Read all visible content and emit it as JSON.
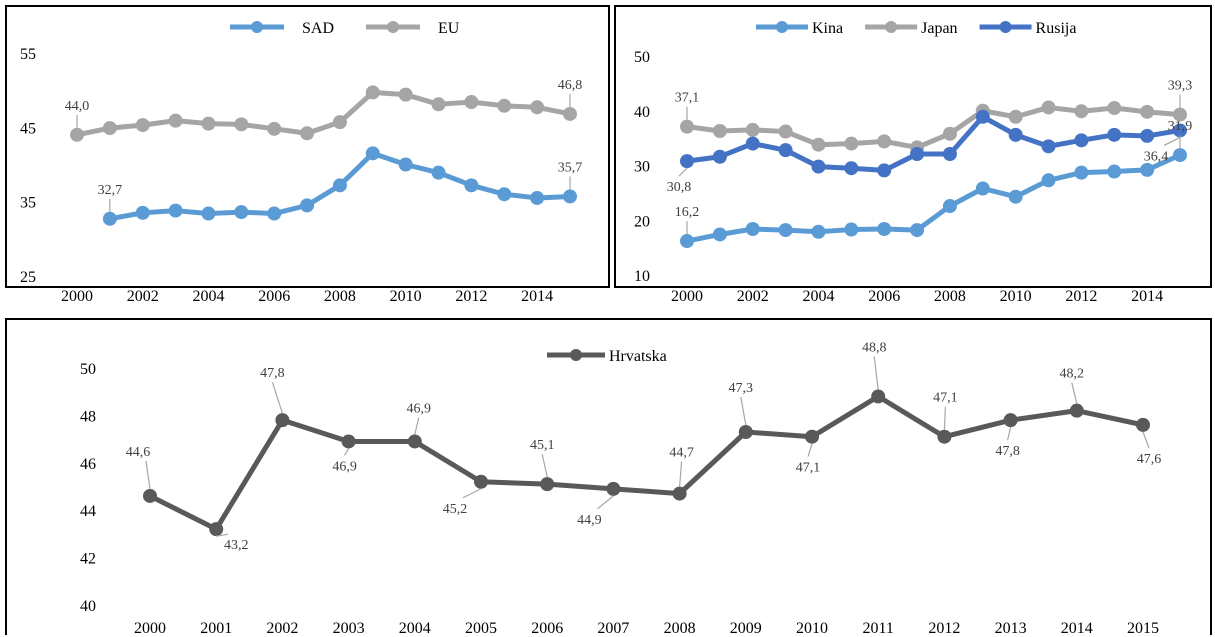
{
  "chart_data": [
    {
      "id": "a",
      "type": "line",
      "title": "",
      "x": [
        2000,
        2001,
        2002,
        2003,
        2004,
        2005,
        2006,
        2007,
        2008,
        2009,
        2010,
        2011,
        2012,
        2013,
        2014,
        2015
      ],
      "xticks": [
        2000,
        2002,
        2004,
        2006,
        2008,
        2010,
        2012,
        2014
      ],
      "ylim": [
        25,
        55
      ],
      "yticks": [
        25,
        35,
        45,
        55
      ],
      "legend": "top-center",
      "series": [
        {
          "name": "SAD",
          "color": "#5B9BD5",
          "values": [
            null,
            32.7,
            33.5,
            33.8,
            33.4,
            33.6,
            33.4,
            34.5,
            37.2,
            41.5,
            40.0,
            38.9,
            37.2,
            36.0,
            35.5,
            35.7
          ]
        },
        {
          "name": "EU",
          "color": "#A5A5A5",
          "values": [
            44.0,
            44.9,
            45.3,
            45.9,
            45.5,
            45.4,
            44.8,
            44.2,
            45.7,
            49.7,
            49.4,
            48.1,
            48.4,
            47.9,
            47.7,
            46.8
          ]
        }
      ],
      "labels": [
        {
          "series": 1,
          "index": 0,
          "text": "44,0"
        },
        {
          "series": 1,
          "index": 15,
          "text": "46,8"
        },
        {
          "series": 0,
          "index": 1,
          "text": "32,7"
        },
        {
          "series": 0,
          "index": 15,
          "text": "35,7"
        }
      ]
    },
    {
      "id": "b",
      "type": "line",
      "title": "",
      "x": [
        2000,
        2001,
        2002,
        2003,
        2004,
        2005,
        2006,
        2007,
        2008,
        2009,
        2010,
        2011,
        2012,
        2013,
        2014,
        2015
      ],
      "xticks": [
        2000,
        2002,
        2004,
        2006,
        2008,
        2010,
        2012,
        2014
      ],
      "ylim": [
        10,
        50
      ],
      "yticks": [
        10,
        20,
        30,
        40,
        50
      ],
      "legend": "top-right",
      "series": [
        {
          "name": "Kina",
          "color": "#5B9BD5",
          "values": [
            16.2,
            17.4,
            18.4,
            18.2,
            17.9,
            18.3,
            18.4,
            18.2,
            22.6,
            25.8,
            24.3,
            27.3,
            28.7,
            28.9,
            29.2,
            31.9
          ]
        },
        {
          "name": "Japan",
          "color": "#A5A5A5",
          "values": [
            37.1,
            36.3,
            36.5,
            36.2,
            33.8,
            34.0,
            34.4,
            33.3,
            35.8,
            40.0,
            38.9,
            40.6,
            39.9,
            40.5,
            39.8,
            39.3
          ]
        },
        {
          "name": "Rusija",
          "color": "#4472C4",
          "values": [
            30.8,
            31.6,
            34.0,
            32.8,
            29.8,
            29.5,
            29.1,
            32.1,
            32.1,
            38.9,
            35.6,
            33.5,
            34.6,
            35.6,
            35.4,
            36.4
          ]
        }
      ],
      "labels": [
        {
          "series": 1,
          "index": 0,
          "text": "37,1"
        },
        {
          "series": 1,
          "index": 15,
          "text": "39,3"
        },
        {
          "series": 2,
          "index": 0,
          "text": "30,8"
        },
        {
          "series": 2,
          "index": 15,
          "text": "36,4"
        },
        {
          "series": 0,
          "index": 0,
          "text": "16,2"
        },
        {
          "series": 0,
          "index": 15,
          "text": "31,9"
        }
      ]
    },
    {
      "id": "c",
      "type": "line",
      "title": "",
      "x": [
        2000,
        2001,
        2002,
        2003,
        2004,
        2005,
        2006,
        2007,
        2008,
        2009,
        2010,
        2011,
        2012,
        2013,
        2014,
        2015
      ],
      "xticks": [
        2000,
        2001,
        2002,
        2003,
        2004,
        2005,
        2006,
        2007,
        2008,
        2009,
        2010,
        2011,
        2012,
        2013,
        2014,
        2015
      ],
      "ylim": [
        40,
        50
      ],
      "yticks": [
        40,
        42,
        44,
        46,
        48,
        50
      ],
      "legend": "top-center",
      "series": [
        {
          "name": "Hrvatska",
          "color": "#595959",
          "values": [
            44.6,
            43.2,
            47.8,
            46.9,
            46.9,
            45.2,
            45.1,
            44.9,
            44.7,
            47.3,
            47.1,
            48.8,
            47.1,
            47.8,
            48.2,
            47.6
          ]
        }
      ],
      "labels": [
        {
          "series": 0,
          "index": 0,
          "text": "44,6"
        },
        {
          "series": 0,
          "index": 1,
          "text": "43,2"
        },
        {
          "series": 0,
          "index": 2,
          "text": "47,8"
        },
        {
          "series": 0,
          "index": 3,
          "text": "46,9"
        },
        {
          "series": 0,
          "index": 4,
          "text": "46,9"
        },
        {
          "series": 0,
          "index": 5,
          "text": "45,2"
        },
        {
          "series": 0,
          "index": 6,
          "text": "45,1"
        },
        {
          "series": 0,
          "index": 7,
          "text": "44,9"
        },
        {
          "series": 0,
          "index": 8,
          "text": "44,7"
        },
        {
          "series": 0,
          "index": 9,
          "text": "47,3"
        },
        {
          "series": 0,
          "index": 10,
          "text": "47,1"
        },
        {
          "series": 0,
          "index": 11,
          "text": "48,8"
        },
        {
          "series": 0,
          "index": 12,
          "text": "47,1"
        },
        {
          "series": 0,
          "index": 13,
          "text": "47,8"
        },
        {
          "series": 0,
          "index": 14,
          "text": "48,2"
        },
        {
          "series": 0,
          "index": 15,
          "text": "47,6"
        }
      ]
    }
  ]
}
